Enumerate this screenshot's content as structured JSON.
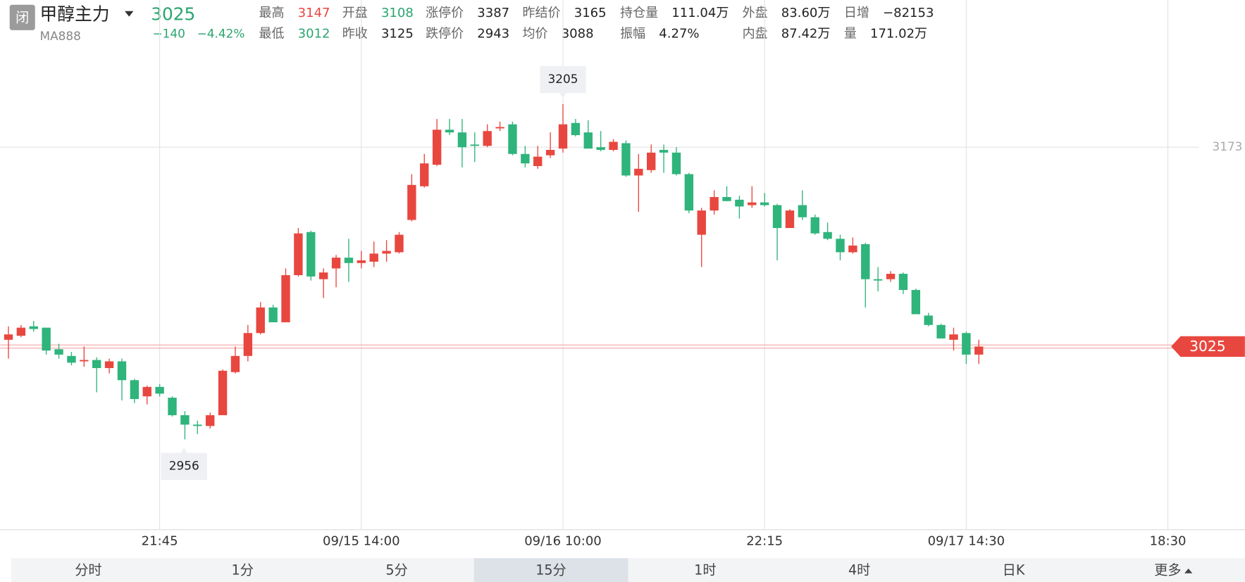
{
  "header": {
    "status": "闭",
    "name": "甲醇主力",
    "price": "3025",
    "code": "MA888",
    "change": "−140",
    "change_pct": "−4.42%",
    "stats": [
      {
        "label": "最高",
        "value": "3147",
        "color": "#e8473f"
      },
      {
        "label": "开盘",
        "value": "3108",
        "color": "#2aa56f"
      },
      {
        "label": "涨停价",
        "value": "3387"
      },
      {
        "label": "昨结价",
        "value": "3165"
      },
      {
        "label": "持仓量",
        "value": "111.04万"
      },
      {
        "label": "外盘",
        "value": "83.60万"
      },
      {
        "label": "日增",
        "value": "−82153"
      },
      {
        "label": "最低",
        "value": "3012",
        "color": "#2aa56f"
      },
      {
        "label": "昨收",
        "value": "3125"
      },
      {
        "label": "跌停价",
        "value": "2943"
      },
      {
        "label": "均价",
        "value": "3088"
      },
      {
        "label": "振幅",
        "value": "4.27%"
      },
      {
        "label": "内盘",
        "value": "87.42万"
      },
      {
        "label": "量",
        "value": "171.02万"
      }
    ]
  },
  "chart_data": {
    "type": "candlestick",
    "up_color": "#e8473f",
    "down_color": "#2fb47c",
    "categories": [
      null,
      null,
      null,
      null,
      null,
      null,
      null,
      null,
      null,
      null,
      null,
      null,
      "21:45",
      null,
      null,
      null,
      null,
      null,
      null,
      null,
      null,
      null,
      null,
      null,
      null,
      null,
      null,
      null,
      "09/15 14:00",
      null,
      null,
      null,
      null,
      null,
      null,
      null,
      null,
      null,
      null,
      null,
      null,
      null,
      null,
      null,
      "09/16 10:00",
      null,
      null,
      null,
      null,
      null,
      null,
      null,
      null,
      null,
      null,
      null,
      null,
      null,
      null,
      null,
      "22:15",
      null,
      null,
      null,
      null,
      null,
      null,
      null,
      null,
      null,
      null,
      null,
      null,
      null,
      null,
      null,
      "09/17 14:30",
      null,
      null,
      null,
      null,
      null,
      null,
      null,
      null,
      null,
      null,
      null,
      null,
      null,
      null,
      null,
      "18:30",
      null,
      null,
      null,
      null,
      null
    ],
    "open": [
      3030,
      3033,
      3040,
      3039,
      3023,
      3018,
      3014,
      3015,
      3009,
      3014,
      3000,
      2988,
      2995,
      2987,
      2974,
      2967,
      2966,
      2974,
      3006,
      3018,
      3035,
      3054,
      3043,
      3078,
      3110,
      3075,
      3083,
      3091,
      3087,
      3088,
      3094,
      3095,
      3119,
      3144,
      3160,
      3186,
      3184,
      3175,
      3174,
      3187,
      3190,
      3168,
      3159,
      3167,
      3172,
      3191,
      3184,
      3173,
      3171,
      3176,
      3152,
      3156,
      3171,
      3169,
      3153,
      3108,
      3126,
      3136,
      3134,
      3130,
      3132,
      3130,
      3113,
      3130,
      3121,
      3110,
      3105,
      3095,
      3101,
      3075,
      3075,
      3079,
      3067,
      3048,
      3041,
      3030,
      3035,
      3019,
      null,
      null,
      null,
      null,
      null,
      null,
      null,
      null,
      null,
      null,
      null,
      null,
      null,
      null,
      null,
      null,
      null,
      null,
      null,
      null
    ],
    "high": [
      3040,
      3041,
      3044,
      3039,
      3027,
      3021,
      3025,
      3017,
      3016,
      3016,
      3001,
      2996,
      2997,
      2988,
      2977,
      2970,
      2976,
      3008,
      3025,
      3041,
      3058,
      3056,
      3083,
      3113,
      3111,
      3083,
      3093,
      3105,
      3096,
      3103,
      3104,
      3110,
      3153,
      3168,
      3194,
      3194,
      3194,
      3184,
      3190,
      3192,
      3192,
      3174,
      3174,
      3184,
      3205,
      3194,
      3193,
      3185,
      3179,
      3178,
      3168,
      3175,
      3175,
      3173,
      3154,
      3128,
      3141,
      3144,
      3137,
      3144,
      3139,
      3131,
      3127,
      3141,
      3123,
      3117,
      3108,
      3106,
      3102,
      3084,
      3081,
      3080,
      3068,
      3050,
      3042,
      3039,
      3036,
      3030,
      null,
      null,
      null,
      null,
      null,
      null,
      null,
      null,
      null,
      null,
      null,
      null,
      null,
      null,
      null,
      null,
      null,
      null,
      null,
      null
    ],
    "low": [
      3016,
      3032,
      3036,
      3019,
      3016,
      3011,
      3010,
      2991,
      3005,
      2985,
      2983,
      2982,
      2988,
      2973,
      2956,
      2960,
      2964,
      2974,
      3005,
      3014,
      3034,
      3043,
      3043,
      3077,
      3074,
      3061,
      3069,
      3073,
      3083,
      3084,
      3088,
      3094,
      3118,
      3143,
      3159,
      3182,
      3158,
      3162,
      3173,
      3185,
      3167,
      3158,
      3157,
      3165,
      3169,
      3181,
      3172,
      3170,
      3170,
      3151,
      3125,
      3154,
      3154,
      3152,
      3124,
      3084,
      3123,
      3133,
      3120,
      3128,
      3129,
      3089,
      3113,
      3119,
      3108,
      3104,
      3089,
      3094,
      3054,
      3066,
      3073,
      3064,
      3049,
      3040,
      3031,
      3022,
      3012,
      3012,
      null,
      null,
      null,
      null,
      null,
      null,
      null,
      null,
      null,
      null,
      null,
      null,
      null,
      null,
      null,
      null,
      null,
      null,
      null,
      null
    ],
    "close": [
      3034,
      3039,
      3038,
      3022,
      3019,
      3013,
      3015,
      3009,
      3014,
      3000,
      2986,
      2995,
      2990,
      2974,
      2967,
      2966,
      2974,
      3007,
      3018,
      3035,
      3054,
      3043,
      3078,
      3109,
      3077,
      3080,
      3091,
      3087,
      3089,
      3094,
      3096,
      3108,
      3145,
      3161,
      3186,
      3184,
      3173,
      3174,
      3185,
      3188,
      3168,
      3161,
      3166,
      3171,
      3190,
      3182,
      3172,
      3171,
      3177,
      3152,
      3157,
      3169,
      3169,
      3153,
      3126,
      3126,
      3136,
      3133,
      3129,
      3132,
      3130,
      3113,
      3126,
      3121,
      3109,
      3105,
      3095,
      3100,
      3075,
      3074,
      3079,
      3067,
      3049,
      3041,
      3031,
      3034,
      3019,
      3025,
      null,
      null,
      null,
      null,
      null,
      null,
      null,
      null,
      null,
      null,
      null,
      null,
      null,
      null,
      null,
      null,
      null,
      null,
      null,
      null
    ],
    "ylim": [
      2889,
      3247
    ],
    "yticks": [
      3173
    ],
    "grid": true,
    "last_price": 3025,
    "high_label": 3205,
    "low_label": 2956
  },
  "tabs": {
    "items": [
      "分时",
      "1分",
      "5分",
      "15分",
      "1时",
      "4时",
      "日K",
      "更多"
    ],
    "active": "15分"
  }
}
